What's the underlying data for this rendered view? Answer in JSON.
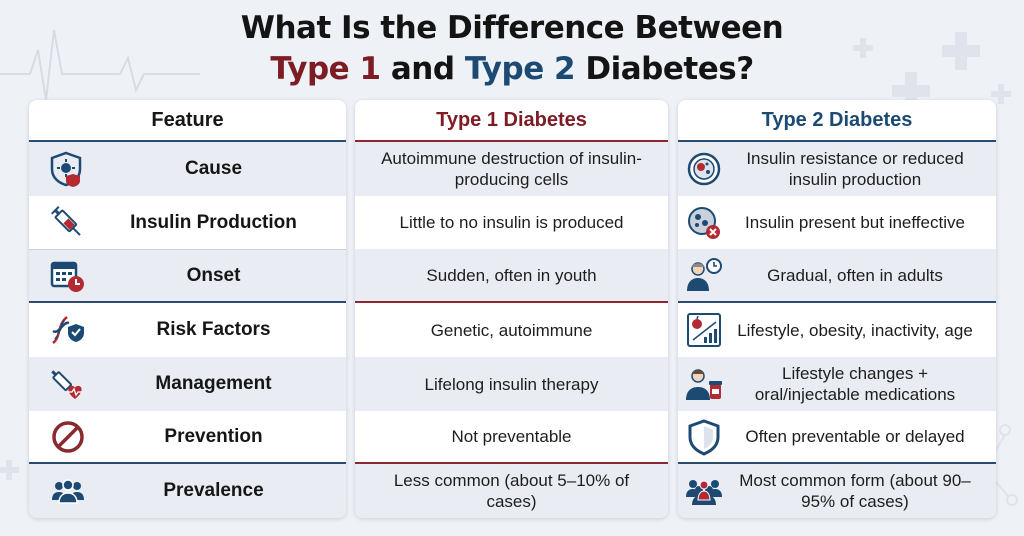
{
  "title": {
    "line1": "What Is the Difference Between",
    "type1": "Type 1",
    "and": " and ",
    "type2": "Type 2",
    "diabetes": " Diabetes?"
  },
  "headers": {
    "feature": "Feature",
    "type1": "Type 1 Diabetes",
    "type2": "Type 2 Diabetes"
  },
  "rows": [
    {
      "feature": "Cause",
      "feature_icon": "virus-shield-icon",
      "type1": "Autoimmune destruction of insulin-producing cells",
      "type2": "Insulin resistance or reduced insulin production",
      "type2_icon": "cell-icon"
    },
    {
      "feature": "Insulin Production",
      "feature_icon": "syringe-icon",
      "type1": "Little to no insulin is produced",
      "type2": "Insulin present but ineffective",
      "type2_icon": "blocked-cell-icon"
    },
    {
      "feature": "Onset",
      "feature_icon": "calendar-clock-icon",
      "type1": "Sudden, often in youth",
      "type2": "Gradual, often in adults",
      "type2_icon": "person-clock-icon"
    },
    {
      "feature": "Risk Factors",
      "feature_icon": "dna-shield-icon",
      "type1": "Genetic, autoimmune",
      "type2": "Lifestyle, obesity, inactivity, age",
      "type2_icon": "apple-chart-icon"
    },
    {
      "feature": "Management",
      "feature_icon": "syringe-heart-icon",
      "type1": "Lifelong insulin therapy",
      "type2": "Lifestyle changes + oral/injectable medications",
      "type2_icon": "person-pills-icon"
    },
    {
      "feature": "Prevention",
      "feature_icon": "prohibited-icon",
      "type1": "Not preventable",
      "type2": "Often preventable or delayed",
      "type2_icon": "shield-icon"
    },
    {
      "feature": "Prevalence",
      "feature_icon": "group-icon",
      "type1": "Less common (about 5–10% of cases)",
      "type2": "Most common form (about 90–95% of cases)",
      "type2_icon": "crowd-icon"
    }
  ],
  "colors": {
    "navy": "#1d4a73",
    "maroon": "#7d1c24",
    "row_alt": "#e9edf3",
    "background": "#eef1f6"
  }
}
